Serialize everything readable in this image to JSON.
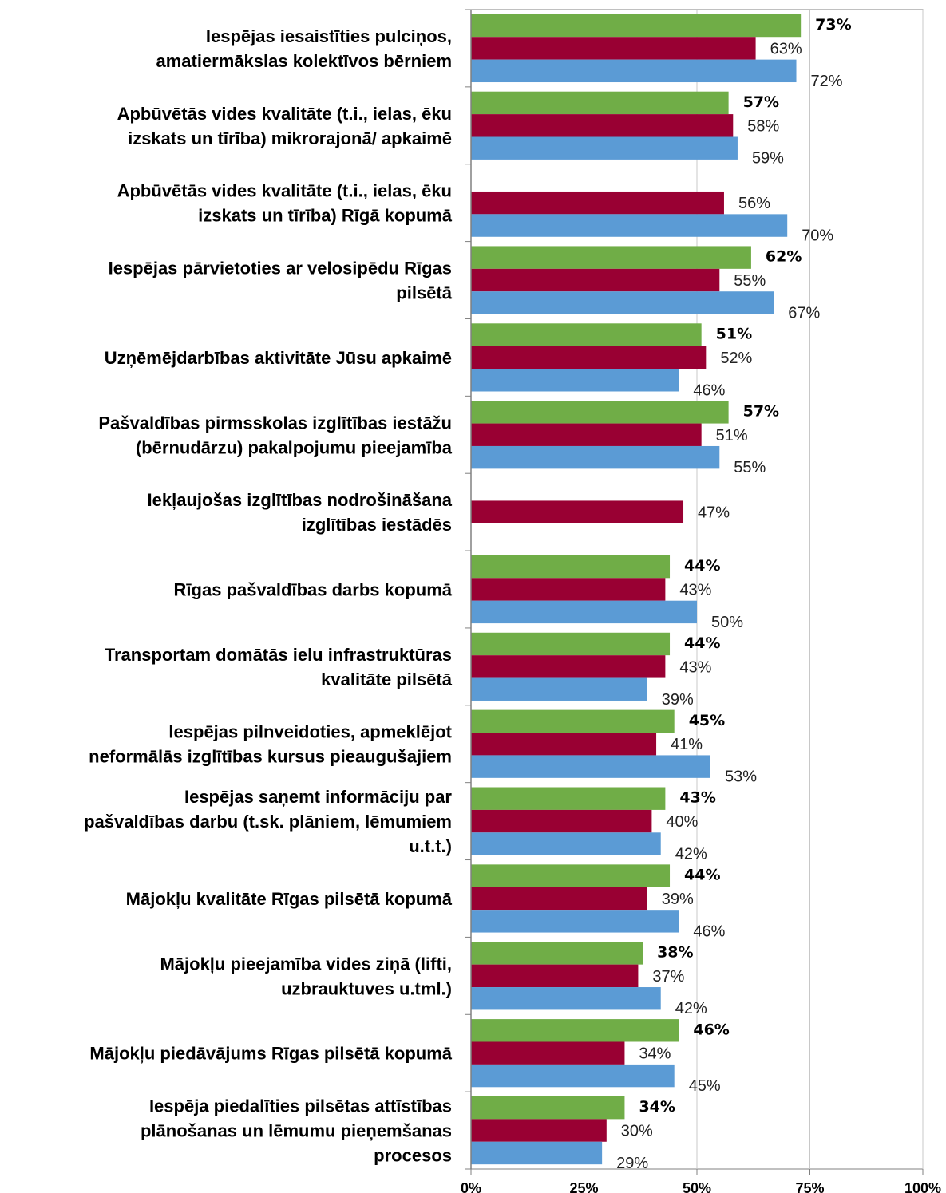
{
  "chart_data": {
    "type": "bar",
    "orientation": "horizontal",
    "categories": [
      [
        "Iespējas iesaistīties pulciņos,",
        "amatiermākslas kolektīvos bērniem"
      ],
      [
        "Apbūvētās vides kvalitāte (t.i., ielas, ēku",
        "izskats un tīrība) mikrorajonā/ apkaimē"
      ],
      [
        "Apbūvētās vides kvalitāte (t.i., ielas, ēku",
        "izskats un tīrība) Rīgā kopumā"
      ],
      [
        "Iespējas pārvietoties ar velosipēdu Rīgas",
        "pilsētā"
      ],
      [
        "Uzņēmējdarbības aktivitāte Jūsu apkaimē"
      ],
      [
        "Pašvaldības pirmsskolas izglītības iestāžu",
        "(bērnudārzu) pakalpojumu pieejamība"
      ],
      [
        "Iekļaujošas izglītības nodrošināšana",
        "izglītības iestādēs"
      ],
      [
        "Rīgas pašvaldības darbs kopumā"
      ],
      [
        "Transportam domātās ielu infrastruktūras",
        "kvalitāte pilsētā"
      ],
      [
        "Iespējas pilnveidoties, apmeklējot",
        "neformālās izglītības kursus pieaugušajiem"
      ],
      [
        "Iespējas saņemt informāciju par",
        "pašvaldības darbu (t.sk. plāniem, lēmumiem",
        "u.t.t.)"
      ],
      [
        "Mājokļu kvalitāte Rīgas pilsētā kopumā"
      ],
      [
        "Mājokļu pieejamība vides ziņā (lifti,",
        "uzbrauktuves u.tml.)"
      ],
      [
        "Mājokļu piedāvājums Rīgas pilsētā kopumā"
      ],
      [
        "Iespēja piedalīties pilsētas attīstības",
        "plānošanas un lēmumu pieņemšanas",
        "procesos"
      ]
    ],
    "series": [
      {
        "color": "#70ad47",
        "label_style": "bold",
        "values": [
          73,
          57,
          null,
          62,
          51,
          57,
          null,
          44,
          44,
          45,
          43,
          44,
          38,
          46,
          34
        ]
      },
      {
        "color": "#990033",
        "label_style": "normal",
        "values": [
          63,
          58,
          56,
          55,
          52,
          51,
          47,
          43,
          43,
          41,
          40,
          39,
          37,
          34,
          30
        ]
      },
      {
        "color": "#5b9bd5",
        "label_style": "normal",
        "values": [
          72,
          59,
          70,
          67,
          46,
          55,
          null,
          50,
          39,
          53,
          42,
          46,
          42,
          45,
          29
        ]
      }
    ],
    "value_suffix": "%",
    "xlim": [
      0,
      100
    ],
    "xticks": [
      "0%",
      "25%",
      "50%",
      "75%",
      "100%"
    ],
    "grid": true,
    "legend": "none",
    "title": "",
    "xlabel": "",
    "ylabel": ""
  }
}
